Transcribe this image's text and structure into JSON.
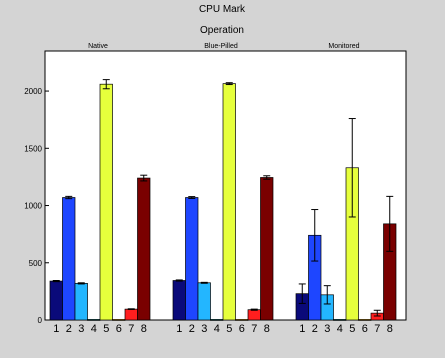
{
  "chart_data": {
    "type": "bar",
    "title": "CPU Mark",
    "subtitle": "Operation",
    "panels": [
      "Native",
      "Blue-Pilled",
      "Monitored"
    ],
    "bar_labels": [
      "1",
      "2",
      "3",
      "4",
      "5",
      "6",
      "7",
      "8"
    ],
    "ylim": [
      0,
      2350
    ],
    "yticks": [
      0,
      500,
      1000,
      1500,
      2000
    ],
    "grid": false,
    "legend": "none",
    "colors": [
      "#0a0a7a",
      "#1e46ff",
      "#23b6ff",
      "#008080",
      "#e6ff3c",
      "#ffb400",
      "#ff1e1e",
      "#7a0000"
    ],
    "groups": [
      {
        "panel": "Native",
        "values": [
          340,
          1070,
          320,
          5,
          2060,
          5,
          95,
          1240
        ],
        "errors": [
          5,
          10,
          5,
          0,
          40,
          0,
          3,
          25
        ]
      },
      {
        "panel": "Blue-Pilled",
        "values": [
          345,
          1070,
          325,
          5,
          2065,
          5,
          90,
          1245
        ],
        "errors": [
          5,
          8,
          4,
          0,
          8,
          0,
          5,
          15
        ]
      },
      {
        "panel": "Monitored",
        "values": [
          230,
          740,
          220,
          5,
          1330,
          5,
          60,
          840
        ],
        "errors": [
          85,
          225,
          80,
          0,
          430,
          0,
          25,
          240
        ]
      }
    ]
  }
}
